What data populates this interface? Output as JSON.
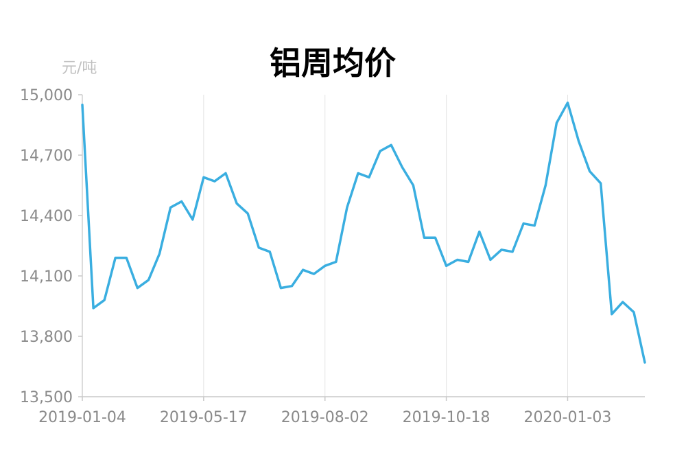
{
  "chart_data": {
    "type": "line",
    "title": "铝周均价",
    "ylabel": "元/吨",
    "xlabel": "",
    "ylim": [
      13500,
      15000
    ],
    "yticks": [
      13500,
      13800,
      14100,
      14400,
      14700,
      15000
    ],
    "yticks_labels": [
      "13,500",
      "13,800",
      "14,100",
      "14,400",
      "14,700",
      "15,000"
    ],
    "xtick_labels": [
      "2019-01-04",
      "2019-05-17",
      "2019-08-02",
      "2019-10-18",
      "2020-01-03"
    ],
    "xtick_index": [
      0,
      11,
      22,
      33,
      44
    ],
    "grid": {
      "x": true,
      "y": false
    },
    "legend": "none",
    "series": [
      {
        "color": "#3aaee0",
        "values": [
          14950,
          13940,
          13980,
          14190,
          14190,
          14040,
          14080,
          14210,
          14440,
          14470,
          14380,
          14590,
          14570,
          14610,
          14460,
          14410,
          14240,
          14220,
          14040,
          14050,
          14130,
          14110,
          14150,
          14170,
          14440,
          14610,
          14590,
          14720,
          14750,
          14640,
          14550,
          14290,
          14290,
          14150,
          14180,
          14170,
          14320,
          14180,
          14230,
          14220,
          14360,
          14350,
          14550,
          14860,
          14960,
          14770,
          14620,
          14560,
          13910,
          13970,
          13920,
          13670
        ]
      }
    ]
  }
}
